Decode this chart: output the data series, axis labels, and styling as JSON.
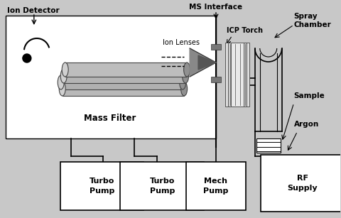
{
  "labels": {
    "ion_detector": "Ion Detector",
    "ms_interface": "MS Interface",
    "icp_torch": "ICP Torch",
    "spray_chamber": "Spray\nChamber",
    "ion_lenses": "Ion Lenses",
    "mass_filter": "Mass Filter",
    "sample": "Sample",
    "argon": "Argon",
    "turbo_pump1": "Turbo\nPump",
    "turbo_pump2": "Turbo\nPump",
    "mech_pump": "Mech\nPump",
    "rf_supply": "RF\nSupply"
  },
  "colors": {
    "bg": "#c8c8c8",
    "white": "#ffffff",
    "black": "#000000",
    "tube_fill": "#b8b8b8",
    "tube_edge": "#333333",
    "tube_highlight": "#e0e0e0"
  }
}
